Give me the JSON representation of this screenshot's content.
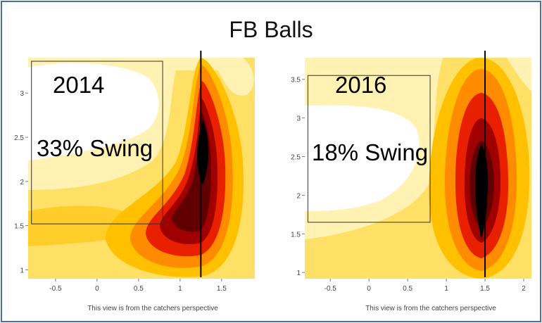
{
  "title": "FB Balls",
  "chart_data": [
    {
      "type": "heatmap",
      "year_label": "2014",
      "swing_label": "33% Swing",
      "footer": "This view is from the catchers perspective",
      "x_ticks": [
        -0.5,
        0,
        0.5,
        1,
        1.5
      ],
      "x_tick_labels": [
        "-0.5",
        "0",
        "0.5",
        "1",
        "1.5"
      ],
      "y_ticks": [
        1,
        1.5,
        2,
        2.5,
        3
      ],
      "y_tick_labels": [
        "1",
        "1.5",
        "2",
        "2.5",
        "3"
      ],
      "xlim": [
        -0.83,
        1.9
      ],
      "ylim": [
        0.9,
        3.4
      ],
      "strike_zone": {
        "x0": -0.79,
        "x1": 0.79,
        "y0": 1.52,
        "y1": 3.36
      },
      "vertical_line_x": 1.25,
      "density_peak": {
        "x": 1.25,
        "y": 2.4
      }
    },
    {
      "type": "heatmap",
      "year_label": "2016",
      "swing_label": "18% Swing",
      "footer": "This view is from the catchers perspective",
      "x_ticks": [
        -0.5,
        0,
        0.5,
        1,
        1.5,
        2
      ],
      "x_tick_labels": [
        "-0.5",
        "0",
        "0.5",
        "1",
        "1.5",
        "2"
      ],
      "y_ticks": [
        1,
        1.5,
        2,
        2.5,
        3,
        3.5
      ],
      "y_tick_labels": [
        "1",
        "1.5",
        "2",
        "2.5",
        "3",
        "3.5"
      ],
      "xlim": [
        -0.83,
        2.1
      ],
      "ylim": [
        0.92,
        3.78
      ],
      "strike_zone": {
        "x0": -0.79,
        "x1": 0.79,
        "y0": 1.65,
        "y1": 3.55
      },
      "vertical_line_x": 1.5,
      "density_peak": {
        "x": 1.5,
        "y": 2.1
      }
    }
  ],
  "colors": {
    "band1": "#fff2b3",
    "band2": "#ffe066",
    "band3": "#ffc000",
    "band4": "#ff8c00",
    "band5": "#e82000",
    "band6": "#a00000",
    "band7": "#600000",
    "core": "#000000",
    "frame": "#4a6fa5"
  }
}
